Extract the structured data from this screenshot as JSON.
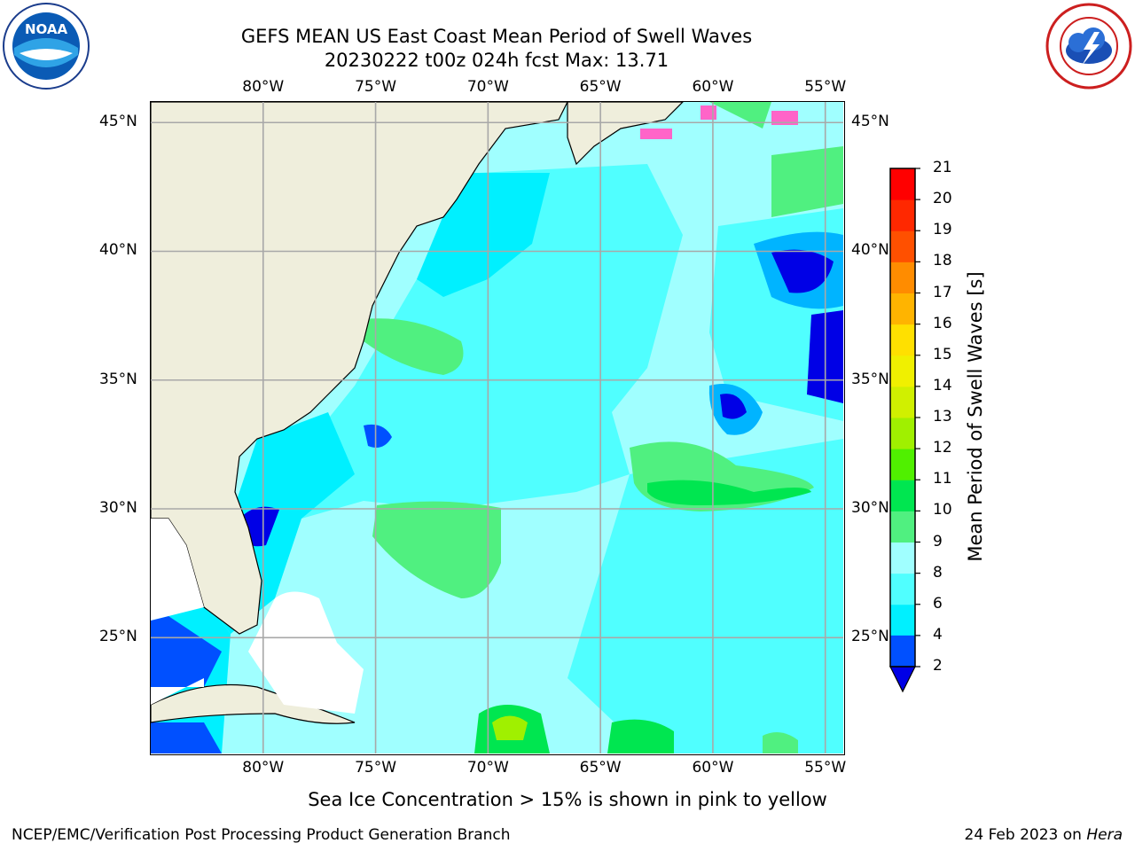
{
  "header": {
    "title_line1": "GEFS MEAN US East Coast Mean Period of Swell Waves",
    "title_line2": "20230222 t00z 024h fcst   Max: 13.71"
  },
  "logos": {
    "left": "noaa-logo",
    "right": "national-weather-service-logo"
  },
  "map": {
    "lon_labels": [
      "80°W",
      "75°W",
      "70°W",
      "65°W",
      "60°W",
      "55°W"
    ],
    "lat_labels": [
      "45°N",
      "40°N",
      "35°N",
      "30°N",
      "25°N"
    ],
    "lon_values": [
      -80,
      -75,
      -70,
      -65,
      -60,
      -55
    ],
    "lat_values": [
      45,
      40,
      35,
      30,
      25
    ],
    "extent": {
      "lon": [
        -85,
        -54.2
      ],
      "lat": [
        20.5,
        45.8
      ]
    },
    "gridlines": true,
    "land_color": "#efeedc",
    "max_value": 13.71
  },
  "colorbar": {
    "title": "Mean Period of Swell Waves [s]",
    "labels": [
      "2",
      "4",
      "6",
      "8",
      "9",
      "10",
      "11",
      "12",
      "13",
      "14",
      "15",
      "16",
      "17",
      "18",
      "19",
      "20",
      "21"
    ],
    "values": [
      2,
      4,
      6,
      8,
      9,
      10,
      11,
      12,
      13,
      14,
      15,
      16,
      17,
      18,
      19,
      20,
      21
    ],
    "colors": [
      "#0050ff",
      "#00b4ff",
      "#00f0ff",
      "#50ffff",
      "#a0ffff",
      "#50f080",
      "#00e650",
      "#50f000",
      "#a0f000",
      "#d0f000",
      "#f0f000",
      "#ffe000",
      "#ffb400",
      "#ff8c00",
      "#ff5000",
      "#ff2800",
      "#ff0000"
    ],
    "underflow_color": "#0000e6"
  },
  "footer": {
    "note": "Sea Ice Concentration > 15% is shown in pink to yellow",
    "credit_left": "NCEP/EMC/Verification Post Processing Product Generation Branch",
    "credit_date": "24 Feb 2023 on ",
    "credit_host": "Hera"
  }
}
